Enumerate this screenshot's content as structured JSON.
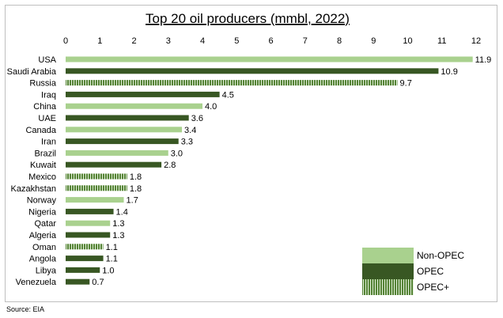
{
  "source": "Source: EIA",
  "colors": {
    "non_opec": "#a9d18e",
    "opec": "#385723",
    "opec_plus": "#548235",
    "opec_plus_stripe": "#e2f0d9",
    "border": "#bfbfbf"
  },
  "chart_data": {
    "type": "bar",
    "orientation": "horizontal",
    "title": "Top 20 oil producers (mmbl, 2022)",
    "xlim": [
      0,
      12
    ],
    "x_ticks": [
      "0",
      "1",
      "2",
      "3",
      "4",
      "5",
      "6",
      "7",
      "8",
      "9",
      "10",
      "11",
      "12"
    ],
    "categories": [
      "USA",
      "Saudi Arabia",
      "Russia",
      "Iraq",
      "China",
      "UAE",
      "Canada",
      "Iran",
      "Brazil",
      "Kuwait",
      "Mexico",
      "Kazakhstan",
      "Norway",
      "Nigeria",
      "Qatar",
      "Algeria",
      "Oman",
      "Angola",
      "Libya",
      "Venezuela"
    ],
    "values": [
      11.9,
      10.9,
      9.7,
      4.5,
      4.0,
      3.6,
      3.4,
      3.3,
      3.0,
      2.8,
      1.8,
      1.8,
      1.7,
      1.4,
      1.3,
      1.3,
      1.1,
      1.1,
      1.0,
      0.7
    ],
    "value_labels": [
      "11.9",
      "10.9",
      "9.7",
      "4.5",
      "4.0",
      "3.6",
      "3.4",
      "3.3",
      "3.0",
      "2.8",
      "1.8",
      "1.8",
      "1.7",
      "1.4",
      "1.3",
      "1.3",
      "1.1",
      "1.1",
      "1.0",
      "0.7"
    ],
    "groups": [
      "Non-OPEC",
      "OPEC",
      "OPEC+",
      "OPEC",
      "Non-OPEC",
      "OPEC",
      "Non-OPEC",
      "OPEC",
      "Non-OPEC",
      "OPEC",
      "OPEC+",
      "OPEC+",
      "Non-OPEC",
      "OPEC",
      "Non-OPEC",
      "OPEC",
      "OPEC+",
      "OPEC",
      "OPEC",
      "OPEC"
    ],
    "legend": {
      "position": "bottom-right",
      "entries": [
        "Non-OPEC",
        "OPEC",
        "OPEC+"
      ]
    },
    "grid": false
  }
}
